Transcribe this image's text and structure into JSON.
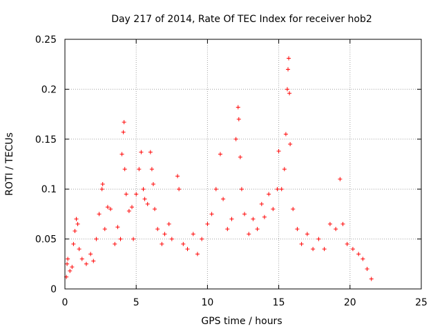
{
  "chart_data": {
    "type": "scatter",
    "title": "Day 217 of 2014, Rate Of TEC Index for receiver hob2",
    "xlabel": "GPS time / hours",
    "ylabel": "ROTI / TECUs",
    "xlim": [
      0,
      25
    ],
    "ylim": [
      0,
      0.25
    ],
    "x_ticks": [
      "0",
      "5",
      "10",
      "15",
      "20",
      "25"
    ],
    "y_ticks": [
      "0",
      "0.05",
      "0.1",
      "0.15",
      "0.2",
      "0.25"
    ],
    "grid": true,
    "marker": "+",
    "color": "#ff0000",
    "series": [
      {
        "name": "",
        "points": [
          [
            0.1,
            0.012
          ],
          [
            0.15,
            0.025
          ],
          [
            0.2,
            0.03
          ],
          [
            0.35,
            0.018
          ],
          [
            0.5,
            0.022
          ],
          [
            0.6,
            0.045
          ],
          [
            0.7,
            0.058
          ],
          [
            0.8,
            0.07
          ],
          [
            0.9,
            0.065
          ],
          [
            1.0,
            0.04
          ],
          [
            1.2,
            0.03
          ],
          [
            1.5,
            0.025
          ],
          [
            1.8,
            0.035
          ],
          [
            2.0,
            0.028
          ],
          [
            2.2,
            0.05
          ],
          [
            2.4,
            0.075
          ],
          [
            2.6,
            0.1
          ],
          [
            2.65,
            0.105
          ],
          [
            2.8,
            0.06
          ],
          [
            3.0,
            0.082
          ],
          [
            3.2,
            0.08
          ],
          [
            3.5,
            0.045
          ],
          [
            3.7,
            0.062
          ],
          [
            3.9,
            0.05
          ],
          [
            4.0,
            0.135
          ],
          [
            4.1,
            0.157
          ],
          [
            4.15,
            0.167
          ],
          [
            4.2,
            0.12
          ],
          [
            4.3,
            0.095
          ],
          [
            4.5,
            0.078
          ],
          [
            4.7,
            0.082
          ],
          [
            4.8,
            0.05
          ],
          [
            5.0,
            0.095
          ],
          [
            5.2,
            0.12
          ],
          [
            5.35,
            0.137
          ],
          [
            5.5,
            0.1
          ],
          [
            5.6,
            0.09
          ],
          [
            5.8,
            0.085
          ],
          [
            6.0,
            0.137
          ],
          [
            6.1,
            0.12
          ],
          [
            6.2,
            0.105
          ],
          [
            6.3,
            0.08
          ],
          [
            6.5,
            0.06
          ],
          [
            6.8,
            0.045
          ],
          [
            7.0,
            0.055
          ],
          [
            7.3,
            0.065
          ],
          [
            7.5,
            0.05
          ],
          [
            7.9,
            0.113
          ],
          [
            8.0,
            0.1
          ],
          [
            8.3,
            0.045
          ],
          [
            8.6,
            0.04
          ],
          [
            9.0,
            0.055
          ],
          [
            9.3,
            0.035
          ],
          [
            9.6,
            0.05
          ],
          [
            10.0,
            0.065
          ],
          [
            10.3,
            0.075
          ],
          [
            10.6,
            0.1
          ],
          [
            10.9,
            0.135
          ],
          [
            11.1,
            0.09
          ],
          [
            11.4,
            0.06
          ],
          [
            11.7,
            0.07
          ],
          [
            12.0,
            0.15
          ],
          [
            12.15,
            0.182
          ],
          [
            12.2,
            0.17
          ],
          [
            12.3,
            0.132
          ],
          [
            12.4,
            0.1
          ],
          [
            12.6,
            0.075
          ],
          [
            12.9,
            0.055
          ],
          [
            13.2,
            0.07
          ],
          [
            13.5,
            0.06
          ],
          [
            13.8,
            0.085
          ],
          [
            14.0,
            0.072
          ],
          [
            14.3,
            0.095
          ],
          [
            14.6,
            0.08
          ],
          [
            14.9,
            0.1
          ],
          [
            15.0,
            0.138
          ],
          [
            15.2,
            0.1
          ],
          [
            15.4,
            0.12
          ],
          [
            15.5,
            0.155
          ],
          [
            15.6,
            0.2
          ],
          [
            15.65,
            0.22
          ],
          [
            15.7,
            0.231
          ],
          [
            15.75,
            0.196
          ],
          [
            15.8,
            0.145
          ],
          [
            16.0,
            0.08
          ],
          [
            16.3,
            0.06
          ],
          [
            16.6,
            0.045
          ],
          [
            17.0,
            0.055
          ],
          [
            17.4,
            0.04
          ],
          [
            17.8,
            0.05
          ],
          [
            18.2,
            0.04
          ],
          [
            18.6,
            0.065
          ],
          [
            19.0,
            0.06
          ],
          [
            19.3,
            0.11
          ],
          [
            19.5,
            0.065
          ],
          [
            19.8,
            0.045
          ],
          [
            20.2,
            0.04
          ],
          [
            20.6,
            0.035
          ],
          [
            20.9,
            0.03
          ],
          [
            21.2,
            0.02
          ],
          [
            21.5,
            0.01
          ]
        ]
      }
    ]
  }
}
